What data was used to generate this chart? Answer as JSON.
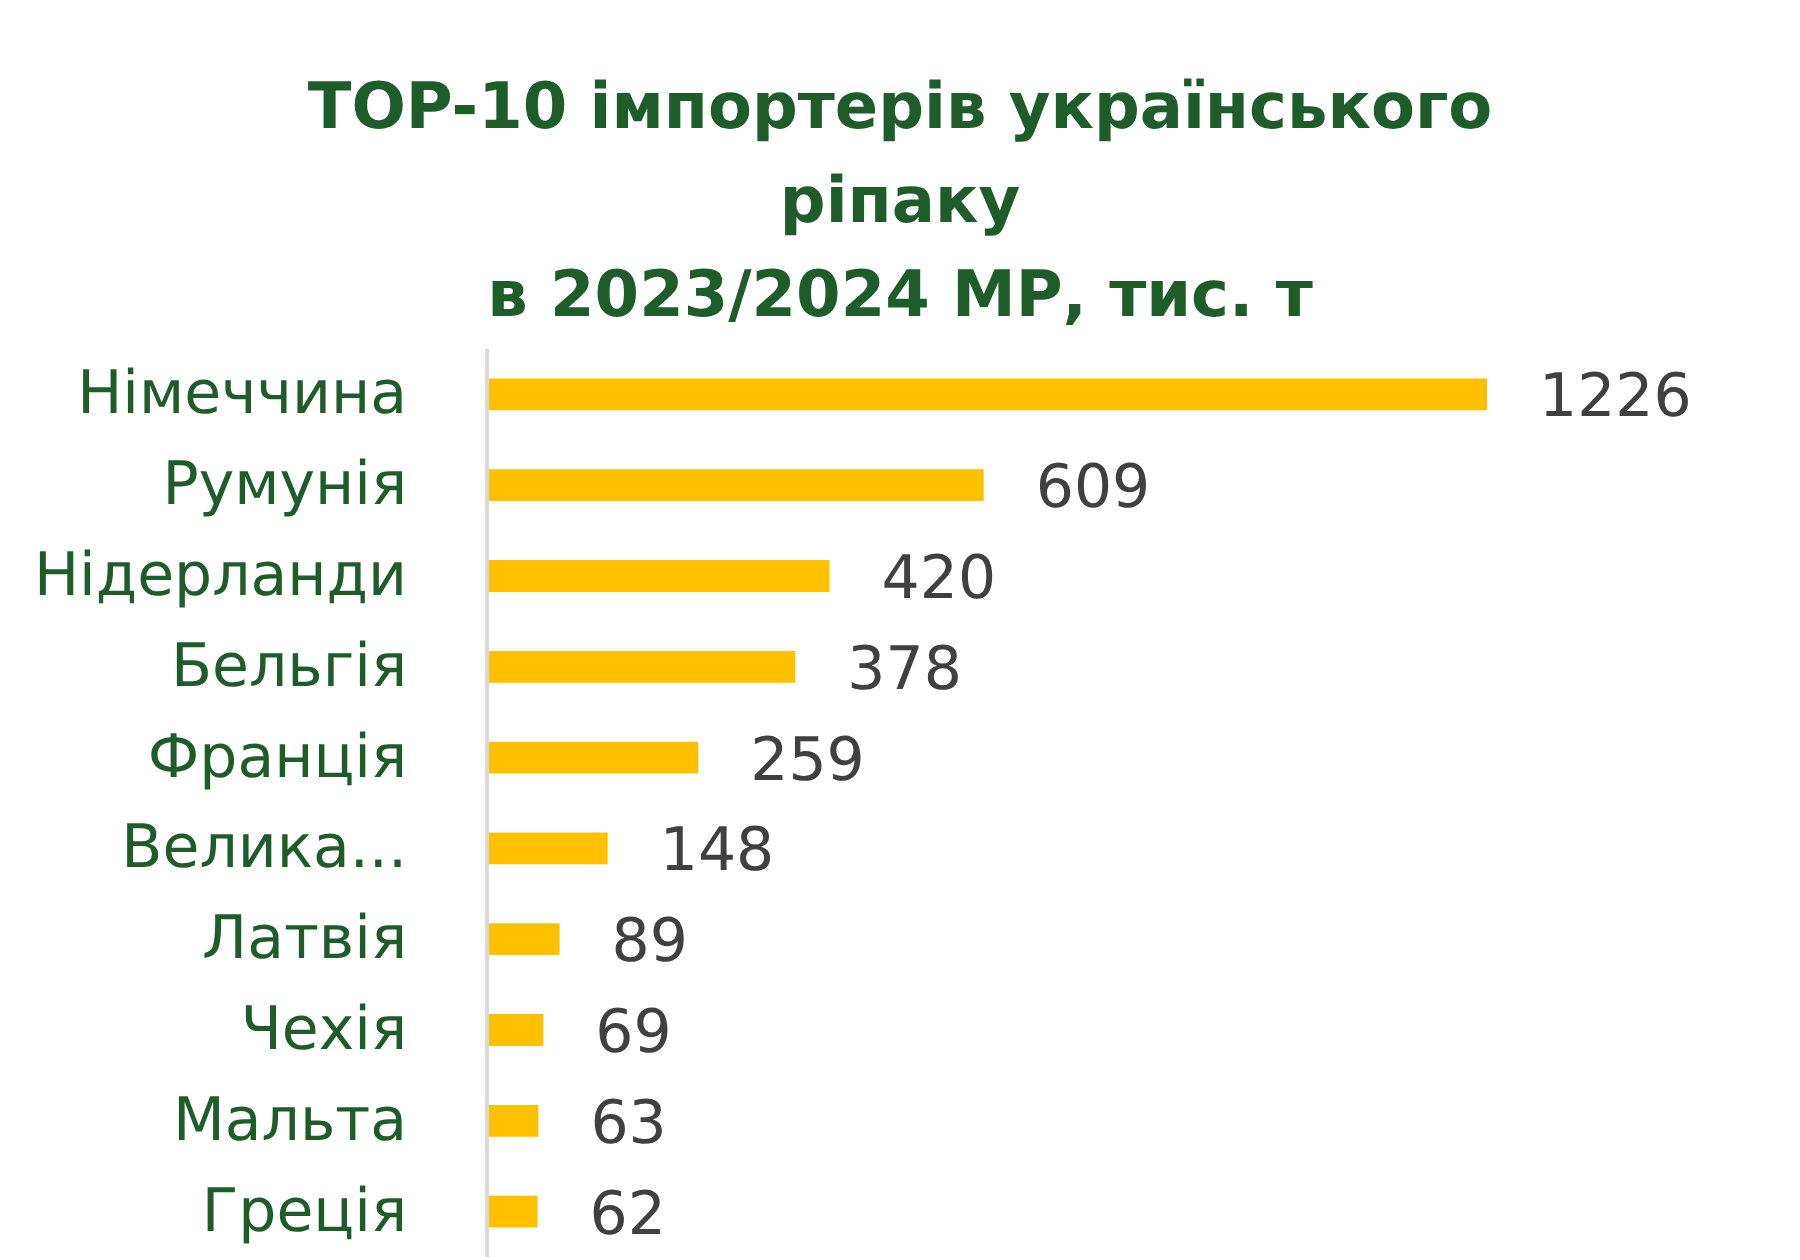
{
  "chart_data": {
    "type": "bar",
    "orientation": "horizontal",
    "title": "TOP-10 імпортерів українського\nріпаку\nв 2023/2024 МР, тис. т",
    "categories": [
      "Німеччина",
      "Румунія",
      "Нідерланди",
      "Бельгія",
      "Франція",
      "Велика...",
      "Латвія",
      "Чехія",
      "Мальта",
      "Греція"
    ],
    "values": [
      1226,
      609,
      420,
      378,
      259,
      148,
      89,
      69,
      63,
      62
    ],
    "color": "#ffc000",
    "data_labels": true
  }
}
